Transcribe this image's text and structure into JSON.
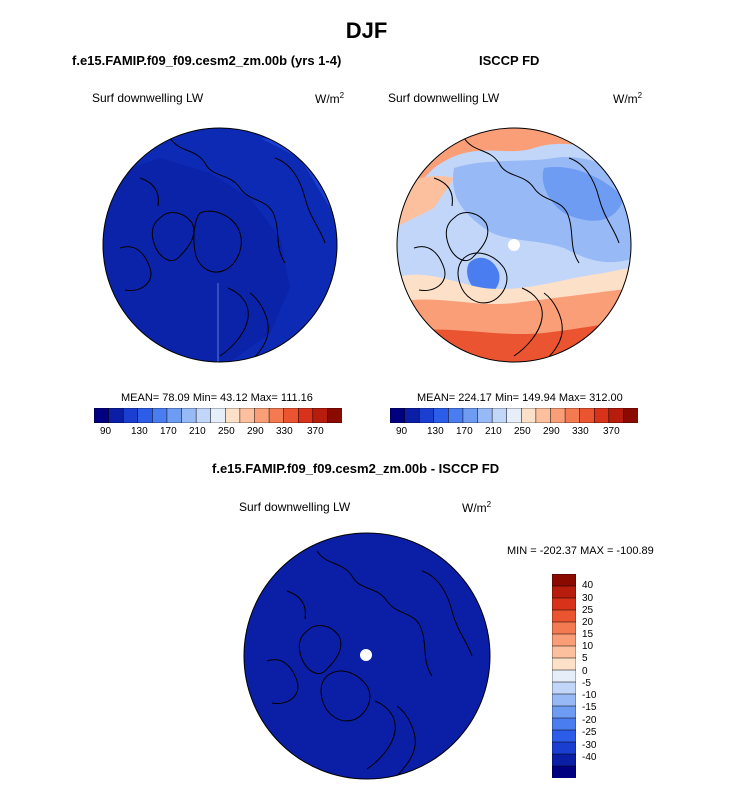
{
  "figure": {
    "title": "DJF",
    "left_panel_title": "f.e15.FAMIP.f09_f09.cesm2_zm.00b (yrs 1-4)",
    "right_panel_title": "ISCCP FD",
    "diff_panel_title": "f.e15.FAMIP.f09_f09.cesm2_zm.00b - ISCCP FD",
    "variable": "Surf downwelling LW",
    "units_base": "W/m",
    "units_exp": "2"
  },
  "colors": {
    "top_scale": [
      "#000080",
      "#0a1fa6",
      "#1a3fd0",
      "#2b5de8",
      "#4a7ef0",
      "#6e9cf3",
      "#97b9f5",
      "#c1d6f8",
      "#e6eefa",
      "#fde0c8",
      "#fcc09e",
      "#fa9e78",
      "#f47a52",
      "#ea5430",
      "#d8321a",
      "#b71c0c",
      "#8b0a00"
    ],
    "diff_scale": [
      "#000080",
      "#0a1fa6",
      "#1a3fd0",
      "#2b5de8",
      "#4a7ef0",
      "#6e9cf3",
      "#97b9f5",
      "#c1d6f8",
      "#e6eefa",
      "#fde0c8",
      "#fcc09e",
      "#fa9e78",
      "#f47a52",
      "#ea5430",
      "#d8321a",
      "#b71c0c",
      "#8b0a00"
    ]
  },
  "chart_data": [
    {
      "type": "heatmap",
      "projection": "north polar stereographic",
      "title": "f.e15.FAMIP.f09_f09.cesm2_zm.00b (yrs 1-4)",
      "label": "Surf downwelling LW",
      "units": "W/m2",
      "stats": {
        "mean": "78.09",
        "min": "43.12",
        "max": "111.16"
      },
      "stats_text": "MEAN=  78.09  Min=  43.12  Max= 111.16",
      "colorbar_ticks": [
        "90",
        "130",
        "170",
        "210",
        "250",
        "290",
        "330",
        "370"
      ]
    },
    {
      "type": "heatmap",
      "projection": "north polar stereographic",
      "title": "ISCCP FD",
      "label": "Surf downwelling LW",
      "units": "W/m2",
      "stats": {
        "mean": "224.17",
        "min": "149.94",
        "max": "312.00"
      },
      "stats_text": "MEAN= 224.17  Min= 149.94  Max= 312.00",
      "colorbar_ticks": [
        "90",
        "130",
        "170",
        "210",
        "250",
        "290",
        "330",
        "370"
      ]
    },
    {
      "type": "heatmap",
      "projection": "north polar stereographic",
      "title": "f.e15.FAMIP.f09_f09.cesm2_zm.00b - ISCCP FD",
      "label": "Surf downwelling LW",
      "units": "W/m2",
      "stats": {
        "min": "-202.37",
        "max": "-100.89"
      },
      "stats_text": "MIN = -202.37 MAX = -100.89",
      "colorbar_ticks": [
        "40",
        "30",
        "25",
        "20",
        "15",
        "10",
        "5",
        "0",
        "-5",
        "-10",
        "-15",
        "-20",
        "-25",
        "-30",
        "-40"
      ]
    }
  ]
}
